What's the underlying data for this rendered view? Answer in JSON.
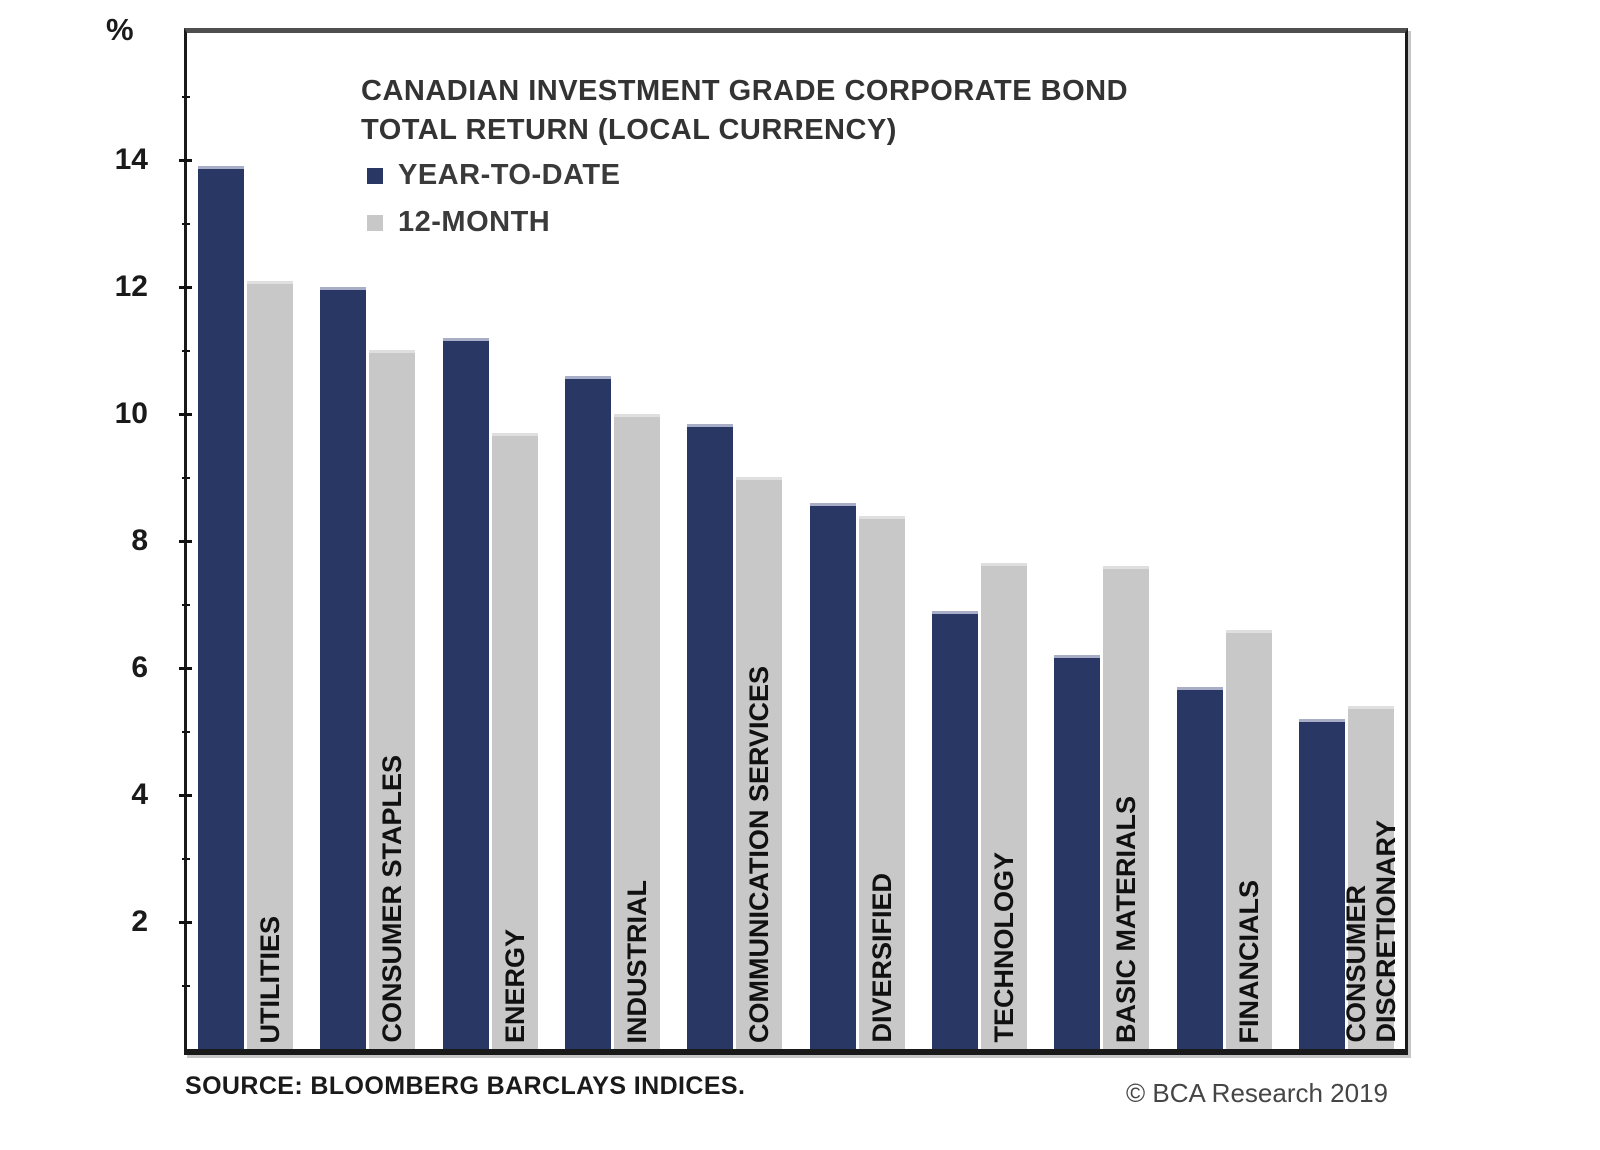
{
  "chart_data": {
    "type": "bar",
    "title": "CANADIAN INVESTMENT GRADE CORPORATE BOND TOTAL RETURN (LOCAL CURRENCY)",
    "title_lines": [
      "CANADIAN INVESTMENT GRADE CORPORATE BOND",
      "TOTAL RETURN (LOCAL CURRENCY)"
    ],
    "ylabel": "%",
    "xlabel": "",
    "ylim": [
      0,
      16
    ],
    "y_major_ticks": [
      2,
      4,
      6,
      8,
      10,
      12,
      14
    ],
    "y_minor_ticks": [
      1,
      3,
      5,
      7,
      9,
      11,
      13,
      15
    ],
    "grid": false,
    "legend_position": "top-left-inside",
    "categories": [
      "UTILITIES",
      "CONSUMER STAPLES",
      "ENERGY",
      "INDUSTRIAL",
      "COMMUNICATION SERVICES",
      "DIVERSIFIED",
      "TECHNOLOGY",
      "BASIC MATERIALS",
      "FINANCIALS",
      "CONSUMER\nDISCRETIONARY"
    ],
    "series": [
      {
        "name": "YEAR-TO-DATE",
        "color": "#293765",
        "values": [
          13.9,
          12.0,
          11.2,
          10.6,
          9.85,
          8.6,
          6.9,
          6.2,
          5.7,
          5.2
        ]
      },
      {
        "name": "12-MONTH",
        "color": "#C8C8C8",
        "values": [
          12.1,
          11.0,
          9.7,
          10.0,
          9.0,
          8.4,
          7.65,
          7.6,
          6.6,
          5.4
        ]
      }
    ]
  },
  "footer": {
    "source": "SOURCE: BLOOMBERG BARCLAYS INDICES.",
    "copyright": "© BCA Research 2019"
  }
}
